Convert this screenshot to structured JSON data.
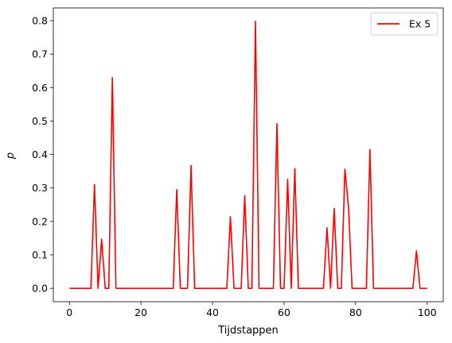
{
  "chart_data": {
    "type": "line",
    "title": "",
    "xlabel": "Tijdstappen",
    "ylabel": "p",
    "xlim": [
      -4.5,
      104.5
    ],
    "ylim": [
      -0.04,
      0.838
    ],
    "xticks": [
      0,
      20,
      40,
      60,
      80,
      100
    ],
    "yticks": [
      0.0,
      0.1,
      0.2,
      0.3,
      0.4,
      0.5,
      0.6,
      0.7,
      0.8
    ],
    "grid": false,
    "legend_position": "top-right",
    "series": [
      {
        "name": "Ex 5",
        "color": "#ff0000",
        "x": [
          0,
          1,
          2,
          3,
          4,
          5,
          6,
          7,
          8,
          9,
          10,
          11,
          12,
          13,
          14,
          15,
          16,
          17,
          18,
          19,
          20,
          21,
          22,
          23,
          24,
          25,
          26,
          27,
          28,
          29,
          30,
          31,
          32,
          33,
          34,
          35,
          36,
          37,
          38,
          39,
          40,
          41,
          42,
          43,
          44,
          45,
          46,
          47,
          48,
          49,
          50,
          51,
          52,
          53,
          54,
          55,
          56,
          57,
          58,
          59,
          60,
          61,
          62,
          63,
          64,
          65,
          66,
          67,
          68,
          69,
          70,
          71,
          72,
          73,
          74,
          75,
          76,
          77,
          78,
          79,
          80,
          81,
          82,
          83,
          84,
          85,
          86,
          87,
          88,
          89,
          90,
          91,
          92,
          93,
          94,
          95,
          96,
          97,
          98,
          99,
          100
        ],
        "values": [
          0,
          0,
          0,
          0,
          0,
          0,
          0,
          0.31,
          0,
          0.147,
          0,
          0,
          0.63,
          0,
          0,
          0,
          0,
          0,
          0,
          0,
          0,
          0,
          0,
          0,
          0,
          0,
          0,
          0,
          0,
          0,
          0.295,
          0,
          0,
          0,
          0.367,
          0,
          0,
          0,
          0,
          0,
          0,
          0,
          0,
          0,
          0,
          0.214,
          0,
          0,
          0,
          0.277,
          0,
          0,
          0.798,
          0,
          0,
          0,
          0,
          0,
          0.492,
          0,
          0,
          0.326,
          0,
          0.358,
          0,
          0,
          0,
          0,
          0,
          0,
          0,
          0,
          0.181,
          0,
          0.239,
          0,
          0,
          0.356,
          0.245,
          0,
          0,
          0,
          0,
          0,
          0.415,
          0,
          0,
          0,
          0,
          0,
          0,
          0,
          0,
          0,
          0,
          0,
          0,
          0.112,
          0,
          0,
          0
        ]
      }
    ]
  }
}
